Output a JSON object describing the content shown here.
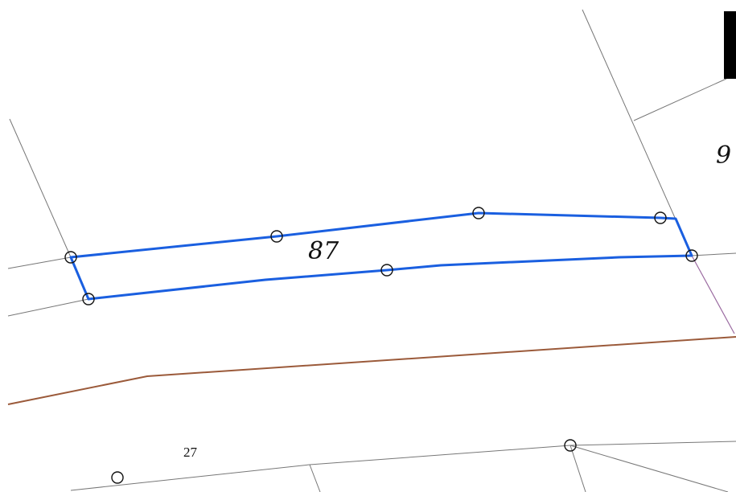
{
  "map": {
    "parcels": {
      "selected_label": "87",
      "neighbor_label": "9",
      "lower_label": "27"
    },
    "styles": {
      "selected_outline": "#1a5fe0",
      "road_edge": "#9b5a3a",
      "boundary_line": "#777777",
      "side_boundary": "#9a6aa0",
      "building_fill": "#000000",
      "vertex_stroke": "#111111"
    }
  }
}
